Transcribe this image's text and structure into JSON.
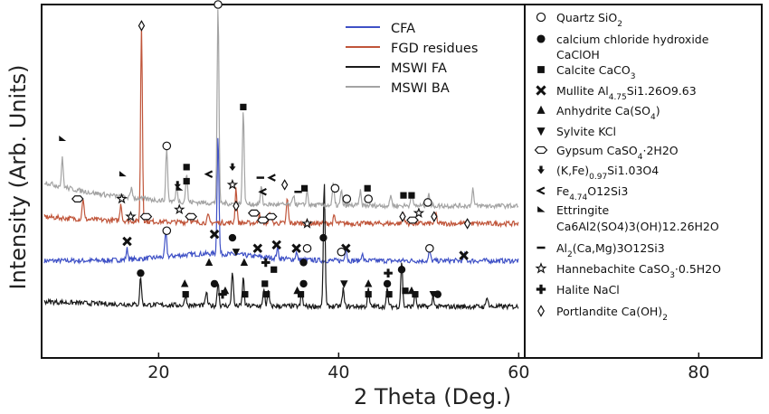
{
  "chart_data": {
    "type": "line",
    "xlabel": "2 Theta (Deg.)",
    "ylabel": "Intensity (Arb. Units)",
    "xlim": [
      7,
      87
    ],
    "xticks": [
      20,
      40,
      60,
      80
    ],
    "ylim": [
      0,
      1
    ],
    "grid": false,
    "legend_position": "top-right",
    "series": [
      {
        "name": "CFA",
        "color": "#3f51c6",
        "baseline": 0.275,
        "peaks": [
          [
            16.5,
            0.03
          ],
          [
            20.8,
            0.07
          ],
          [
            26.6,
            0.34
          ],
          [
            33.2,
            0.03
          ],
          [
            35.3,
            0.02
          ],
          [
            40.8,
            0.04
          ],
          [
            42.6,
            0.02
          ],
          [
            50.1,
            0.03
          ],
          [
            54.0,
            0.02
          ]
        ]
      },
      {
        "name": "FGD residues",
        "color": "#c0553a",
        "baseline": 0.38,
        "peaks": [
          [
            11.6,
            0.06
          ],
          [
            15.8,
            0.05
          ],
          [
            18.1,
            0.56
          ],
          [
            23.4,
            0.03
          ],
          [
            25.5,
            0.02
          ],
          [
            28.6,
            0.1
          ],
          [
            31.2,
            0.03
          ],
          [
            32.4,
            0.03
          ],
          [
            34.3,
            0.07
          ],
          [
            39.5,
            0.02
          ],
          [
            47.2,
            0.03
          ],
          [
            50.8,
            0.03
          ]
        ]
      },
      {
        "name": "MSWI FA",
        "color": "#1a1a1a",
        "baseline": 0.145,
        "peaks": [
          [
            18.0,
            0.08
          ],
          [
            23.0,
            0.03
          ],
          [
            25.3,
            0.04
          ],
          [
            26.6,
            0.07
          ],
          [
            28.2,
            0.1
          ],
          [
            29.4,
            0.08
          ],
          [
            31.7,
            0.05
          ],
          [
            32.2,
            0.04
          ],
          [
            35.9,
            0.04
          ],
          [
            38.4,
            0.35
          ],
          [
            40.5,
            0.05
          ],
          [
            43.3,
            0.05
          ],
          [
            45.4,
            0.05
          ],
          [
            47.0,
            0.13
          ],
          [
            48.5,
            0.04
          ],
          [
            50.5,
            0.03
          ],
          [
            56.5,
            0.03
          ]
        ]
      },
      {
        "name": "MSWI BA",
        "color": "#a3a3a3",
        "baseline": 0.43,
        "peaks": [
          [
            9.3,
            0.08
          ],
          [
            17.0,
            0.03
          ],
          [
            20.9,
            0.15
          ],
          [
            22.0,
            0.04
          ],
          [
            23.1,
            0.08
          ],
          [
            26.6,
            0.56
          ],
          [
            29.4,
            0.26
          ],
          [
            31.4,
            0.05
          ],
          [
            35.0,
            0.03
          ],
          [
            36.5,
            0.04
          ],
          [
            39.4,
            0.06
          ],
          [
            40.3,
            0.04
          ],
          [
            42.4,
            0.04
          ],
          [
            45.8,
            0.03
          ],
          [
            48.1,
            0.04
          ],
          [
            50.0,
            0.04
          ],
          [
            54.9,
            0.05
          ]
        ]
      }
    ]
  },
  "legend": {
    "series": [
      "CFA",
      "FGD residues",
      "MSWI FA",
      "MSWI BA"
    ],
    "phases": [
      {
        "icon": "circle-open",
        "text": "Quartz SiO",
        "sub": "2",
        "rest": ""
      },
      {
        "icon": "circle-filled",
        "text": "calcium chloride hydroxide",
        "sub": "",
        "rest": ""
      },
      {
        "icon": "none",
        "text": "CaClOH",
        "sub": "",
        "rest": ""
      },
      {
        "icon": "square",
        "text": "Calcite CaCO",
        "sub": "3",
        "rest": ""
      },
      {
        "icon": "cross",
        "text": "Mullite Al",
        "sub": "4.75",
        "rest": "Si1.26O9.63"
      },
      {
        "icon": "triangle-up",
        "text": "Anhydrite Ca(SO",
        "sub": "4",
        "rest": ")"
      },
      {
        "icon": "triangle-down",
        "text": "Sylvite KCl",
        "sub": "",
        "rest": ""
      },
      {
        "icon": "hexagon",
        "text": "Gypsum CaSO",
        "sub": "4",
        "rest": "·2H2O"
      },
      {
        "icon": "arrow-down",
        "text": "(K,Fe)",
        "sub": "0.97",
        "rest": "Si1.03O4"
      },
      {
        "icon": "less-than",
        "text": "Fe",
        "sub": "4.74",
        "rest": "O12Si3"
      },
      {
        "icon": "flag",
        "text": "Ettringite",
        "sub": "",
        "rest": ""
      },
      {
        "icon": "none",
        "text": "Ca6Al2(SO4)3(OH)12.26H2O",
        "sub": "",
        "rest": ""
      },
      {
        "icon": "dash",
        "text": "Al",
        "sub": "2",
        "rest": "(Ca,Mg)3O12Si3"
      },
      {
        "icon": "star",
        "text": "Hannebachite CaSO",
        "sub": "3",
        "rest": "·0.5H2O"
      },
      {
        "icon": "plus",
        "text": "Halite NaCl",
        "sub": "",
        "rest": ""
      },
      {
        "icon": "diamond",
        "text": "Portlandite Ca(OH)",
        "sub": "2",
        "rest": ""
      }
    ]
  }
}
